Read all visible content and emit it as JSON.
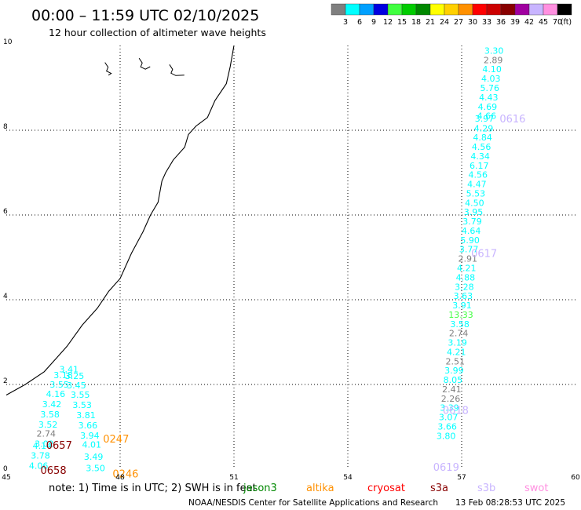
{
  "header": {
    "title": "00:00 – 11:59 UTC 02/10/2025",
    "subtitle": "12 hour collection of altimeter wave heights"
  },
  "colorbar": {
    "ticks": [
      "3",
      "6",
      "9",
      "12",
      "15",
      "18",
      "21",
      "24",
      "27",
      "30",
      "33",
      "36",
      "39",
      "42",
      "45",
      "70",
      "(ft)"
    ],
    "colors": [
      "#7f7f7f",
      "#00ffff",
      "#00a0ff",
      "#0000e0",
      "#40ff40",
      "#00cc00",
      "#008800",
      "#ffff00",
      "#ffd000",
      "#ff9000",
      "#ff0000",
      "#cc0000",
      "#880000",
      "#a000a0",
      "#c8b4ff",
      "#ff90e0",
      "#000000"
    ]
  },
  "legend": {
    "note": "note: 1) Time is in UTC; 2) SWH is in feet",
    "satellites": [
      {
        "name": "jason3",
        "color": "#008800"
      },
      {
        "name": "altika",
        "color": "#ff9000"
      },
      {
        "name": "cryosat",
        "color": "#ff0000"
      },
      {
        "name": "s3a",
        "color": "#880000"
      },
      {
        "name": "s3b",
        "color": "#c8b4ff"
      },
      {
        "name": "swot",
        "color": "#ff90e0"
      }
    ]
  },
  "footer": {
    "credit": "NOAA/NESDIS Center for Satellite Applications and Research",
    "timestamp": "13 Feb 08:28:53 UTC 2025"
  },
  "chart_data": {
    "type": "scatter",
    "title": "00:00 – 11:59 UTC 02/10/2025",
    "subtitle": "12 hour collection of altimeter wave heights",
    "xlim": [
      45,
      60
    ],
    "ylim": [
      0,
      10
    ],
    "x_ticks": [
      "45",
      "48",
      "51",
      "54",
      "57",
      "60"
    ],
    "y_ticks": [
      "0",
      "2",
      "4",
      "6",
      "8",
      "10"
    ],
    "grid": true,
    "value_units": "ft",
    "coastline": [
      [
        51.0,
        10.0
      ],
      [
        50.9,
        9.5
      ],
      [
        50.8,
        9.1
      ],
      [
        50.5,
        8.7
      ],
      [
        50.4,
        8.5
      ],
      [
        50.3,
        8.3
      ],
      [
        50.0,
        8.1
      ],
      [
        49.8,
        7.9
      ],
      [
        49.7,
        7.6
      ],
      [
        49.4,
        7.3
      ],
      [
        49.2,
        7.0
      ],
      [
        49.1,
        6.8
      ],
      [
        49.0,
        6.3
      ],
      [
        48.8,
        6.0
      ],
      [
        48.6,
        5.6
      ],
      [
        48.3,
        5.1
      ],
      [
        48.0,
        4.5
      ],
      [
        47.7,
        4.2
      ],
      [
        47.4,
        3.8
      ],
      [
        47.0,
        3.4
      ],
      [
        46.6,
        2.9
      ],
      [
        46.3,
        2.6
      ],
      [
        46.0,
        2.3
      ],
      [
        45.5,
        2.0
      ],
      [
        45.0,
        1.75
      ]
    ],
    "points": [
      {
        "x": 57.85,
        "y": 9.88,
        "v": "3.30",
        "c": "#00ffff"
      },
      {
        "x": 57.83,
        "y": 9.66,
        "v": "2.89",
        "c": "#7f7f7f"
      },
      {
        "x": 57.8,
        "y": 9.44,
        "v": "4.10",
        "c": "#00ffff"
      },
      {
        "x": 57.77,
        "y": 9.22,
        "v": "4.03",
        "c": "#00ffff"
      },
      {
        "x": 57.74,
        "y": 9.0,
        "v": "5.76",
        "c": "#00ffff"
      },
      {
        "x": 57.71,
        "y": 8.78,
        "v": "4.43",
        "c": "#00ffff"
      },
      {
        "x": 57.68,
        "y": 8.56,
        "v": "4.69",
        "c": "#00ffff"
      },
      {
        "x": 57.66,
        "y": 8.34,
        "v": "4.66",
        "c": "#00ffff"
      },
      {
        "x": 57.6,
        "y": 8.28,
        "v": "3.97",
        "c": "#00ffff"
      },
      {
        "x": 57.58,
        "y": 8.05,
        "v": "4.29",
        "c": "#00ffff"
      },
      {
        "x": 57.55,
        "y": 7.83,
        "v": "4.84",
        "c": "#00ffff"
      },
      {
        "x": 57.52,
        "y": 7.61,
        "v": "4.56",
        "c": "#00ffff"
      },
      {
        "x": 57.49,
        "y": 7.39,
        "v": "4.34",
        "c": "#00ffff"
      },
      {
        "x": 57.46,
        "y": 7.17,
        "v": "6.17",
        "c": "#00ffff"
      },
      {
        "x": 57.43,
        "y": 6.95,
        "v": "4.56",
        "c": "#00ffff"
      },
      {
        "x": 57.4,
        "y": 6.73,
        "v": "4.47",
        "c": "#00ffff"
      },
      {
        "x": 57.37,
        "y": 6.51,
        "v": "5.53",
        "c": "#00ffff"
      },
      {
        "x": 57.34,
        "y": 6.29,
        "v": "4.50",
        "c": "#00ffff"
      },
      {
        "x": 57.31,
        "y": 6.07,
        "v": "3.95",
        "c": "#00ffff"
      },
      {
        "x": 57.28,
        "y": 5.85,
        "v": "3.79",
        "c": "#00ffff"
      },
      {
        "x": 57.25,
        "y": 5.63,
        "v": "4.64",
        "c": "#00ffff"
      },
      {
        "x": 57.22,
        "y": 5.41,
        "v": "5.90",
        "c": "#00ffff"
      },
      {
        "x": 57.19,
        "y": 5.19,
        "v": "3.77",
        "c": "#00ffff"
      },
      {
        "x": 57.16,
        "y": 4.97,
        "v": "2.91",
        "c": "#7f7f7f"
      },
      {
        "x": 57.13,
        "y": 4.75,
        "v": "4.21",
        "c": "#00ffff"
      },
      {
        "x": 57.1,
        "y": 4.53,
        "v": "4.88",
        "c": "#00ffff"
      },
      {
        "x": 57.07,
        "y": 4.31,
        "v": "3.28",
        "c": "#00ffff"
      },
      {
        "x": 57.04,
        "y": 4.09,
        "v": "3.63",
        "c": "#00ffff"
      },
      {
        "x": 57.01,
        "y": 3.87,
        "v": "3.91",
        "c": "#00ffff"
      },
      {
        "x": 56.98,
        "y": 3.65,
        "v": "13.33",
        "c": "#40ff40"
      },
      {
        "x": 56.95,
        "y": 3.43,
        "v": "3.58",
        "c": "#00ffff"
      },
      {
        "x": 56.92,
        "y": 3.21,
        "v": "2.74",
        "c": "#7f7f7f"
      },
      {
        "x": 56.89,
        "y": 2.99,
        "v": "3.19",
        "c": "#00ffff"
      },
      {
        "x": 56.86,
        "y": 2.77,
        "v": "4.21",
        "c": "#00ffff"
      },
      {
        "x": 56.83,
        "y": 2.55,
        "v": "2.51",
        "c": "#7f7f7f"
      },
      {
        "x": 56.8,
        "y": 2.33,
        "v": "3.99",
        "c": "#00ffff"
      },
      {
        "x": 56.77,
        "y": 2.11,
        "v": "8.05",
        "c": "#00ffff"
      },
      {
        "x": 56.74,
        "y": 1.89,
        "v": "2.41",
        "c": "#7f7f7f"
      },
      {
        "x": 56.71,
        "y": 1.67,
        "v": "2.26",
        "c": "#7f7f7f"
      },
      {
        "x": 56.68,
        "y": 1.45,
        "v": "3.39",
        "c": "#00ffff"
      },
      {
        "x": 56.65,
        "y": 1.23,
        "v": "3.07",
        "c": "#00ffff"
      },
      {
        "x": 56.62,
        "y": 1.01,
        "v": "3.66",
        "c": "#00ffff"
      },
      {
        "x": 56.59,
        "y": 0.79,
        "v": "3.80",
        "c": "#00ffff"
      },
      {
        "x": 46.65,
        "y": 2.36,
        "v": "3.41",
        "c": "#00ffff"
      },
      {
        "x": 46.5,
        "y": 2.22,
        "v": "3.18",
        "c": "#00ffff"
      },
      {
        "x": 46.8,
        "y": 2.2,
        "v": "3.25",
        "c": "#00ffff"
      },
      {
        "x": 46.4,
        "y": 2.0,
        "v": "3.55",
        "c": "#00ffff"
      },
      {
        "x": 46.85,
        "y": 1.98,
        "v": "3.45",
        "c": "#00ffff"
      },
      {
        "x": 46.3,
        "y": 1.78,
        "v": "4.16",
        "c": "#00ffff"
      },
      {
        "x": 46.95,
        "y": 1.76,
        "v": "3.55",
        "c": "#00ffff"
      },
      {
        "x": 46.2,
        "y": 1.54,
        "v": "3.42",
        "c": "#00ffff"
      },
      {
        "x": 47.0,
        "y": 1.52,
        "v": "3.53",
        "c": "#00ffff"
      },
      {
        "x": 46.15,
        "y": 1.3,
        "v": "3.58",
        "c": "#00ffff"
      },
      {
        "x": 47.1,
        "y": 1.28,
        "v": "3.81",
        "c": "#00ffff"
      },
      {
        "x": 46.1,
        "y": 1.06,
        "v": "3.52",
        "c": "#00ffff"
      },
      {
        "x": 47.15,
        "y": 1.04,
        "v": "3.66",
        "c": "#00ffff"
      },
      {
        "x": 46.05,
        "y": 0.84,
        "v": "2.74",
        "c": "#7f7f7f"
      },
      {
        "x": 47.2,
        "y": 0.8,
        "v": "3.94",
        "c": "#00ffff"
      },
      {
        "x": 46.0,
        "y": 0.6,
        "v": "3.02",
        "c": "#00ffff"
      },
      {
        "x": 47.25,
        "y": 0.58,
        "v": "4.01",
        "c": "#00ffff"
      },
      {
        "x": 45.95,
        "y": 0.56,
        "v": "4.14",
        "c": "#00ffff"
      },
      {
        "x": 45.9,
        "y": 0.32,
        "v": "3.78",
        "c": "#00ffff"
      },
      {
        "x": 47.3,
        "y": 0.3,
        "v": "3.49",
        "c": "#00ffff"
      },
      {
        "x": 45.85,
        "y": 0.08,
        "v": "4.06",
        "c": "#00ffff"
      },
      {
        "x": 47.35,
        "y": 0.03,
        "v": "3.50",
        "c": "#00ffff"
      }
    ],
    "pass_labels": [
      {
        "x": 58.0,
        "y": 8.28,
        "t": "0616",
        "c": "#c8b4ff"
      },
      {
        "x": 57.25,
        "y": 5.1,
        "t": "0617",
        "c": "#c8b4ff"
      },
      {
        "x": 56.5,
        "y": 1.4,
        "t": "0618",
        "c": "#c8b4ff"
      },
      {
        "x": 56.25,
        "y": 0.06,
        "t": "0619",
        "c": "#c8b4ff"
      },
      {
        "x": 47.55,
        "y": 0.72,
        "t": "0247",
        "c": "#ff9000"
      },
      {
        "x": 47.8,
        "y": -0.1,
        "t": "0246",
        "c": "#ff9000"
      },
      {
        "x": 46.05,
        "y": 0.57,
        "t": "0657",
        "c": "#880000"
      },
      {
        "x": 45.9,
        "y": -0.02,
        "t": "0658",
        "c": "#880000"
      }
    ]
  }
}
